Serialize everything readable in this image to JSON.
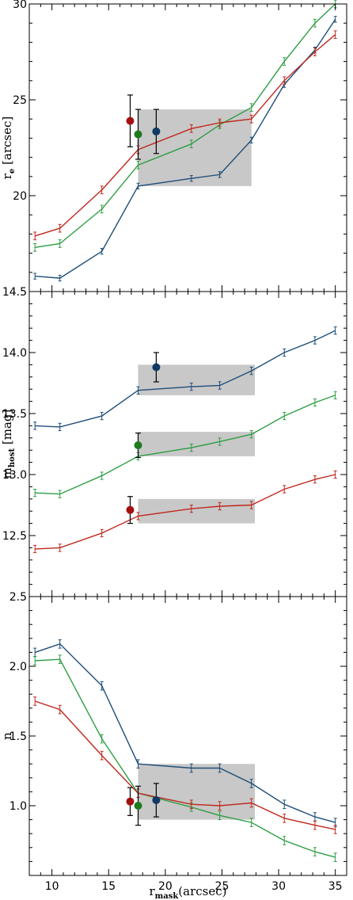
{
  "colors": {
    "blue": "#1f4e79",
    "green": "#2e9e44",
    "red": "#c0281e",
    "dot_red": "#a31010",
    "dot_green": "#1f7a1f",
    "dot_blue": "#0e3a63",
    "shade": "#c8c8c8"
  },
  "xlabel": {
    "main": "r",
    "sub": "mask",
    "rest": "(arcsec)"
  },
  "chart_data": [
    {
      "type": "line",
      "panel": "top",
      "ylabel": {
        "main": "r",
        "sub": "e",
        "rest": " [arcsec]"
      },
      "xlim": [
        8,
        36
      ],
      "ylim": [
        15,
        30
      ],
      "yticks": [
        20,
        25,
        30
      ],
      "x": [
        8.5,
        10.7,
        14.4,
        17.6,
        22.3,
        24.8,
        27.6,
        30.5,
        33.2,
        35
      ],
      "series": [
        {
          "color": "blue",
          "values": [
            15.8,
            15.7,
            17.1,
            20.5,
            20.9,
            21.1,
            22.9,
            25.8,
            27.6,
            29.2
          ],
          "err": 0.15
        },
        {
          "color": "green",
          "values": [
            17.3,
            17.5,
            19.3,
            21.6,
            22.7,
            23.7,
            24.6,
            27.0,
            29.0,
            30.0
          ],
          "err": 0.2
        },
        {
          "color": "red",
          "values": [
            17.9,
            18.3,
            20.3,
            22.4,
            23.5,
            23.8,
            24.0,
            26.0,
            27.5,
            28.4
          ],
          "err": 0.2
        }
      ],
      "points": [
        {
          "color": "dot_red",
          "x": 16.9,
          "y": 23.9,
          "err": 1.35
        },
        {
          "color": "dot_green",
          "x": 17.6,
          "y": 23.2,
          "err": 1.3
        },
        {
          "color": "dot_blue",
          "x": 19.2,
          "y": 23.35,
          "err": 1.15
        }
      ],
      "boxes": [
        {
          "x0": 17.6,
          "x1": 27.6,
          "y0": 20.5,
          "y1": 24.5
        }
      ]
    },
    {
      "type": "line",
      "panel": "middle",
      "ylabel": {
        "main": "m",
        "sub": "host",
        "rest": " [mag]"
      },
      "xlim": [
        8,
        36
      ],
      "ylim": [
        12.0,
        14.5
      ],
      "yticks": [
        12.5,
        13.0,
        13.5,
        14.0,
        14.5
      ],
      "x": [
        8.5,
        10.7,
        14.4,
        17.6,
        22.3,
        24.8,
        27.6,
        30.5,
        33.2,
        35
      ],
      "series": [
        {
          "color": "blue",
          "values": [
            13.4,
            13.39,
            13.48,
            13.69,
            13.72,
            13.73,
            13.85,
            14.0,
            14.1,
            14.18
          ],
          "err": 0.03
        },
        {
          "color": "green",
          "values": [
            12.85,
            12.84,
            12.99,
            13.15,
            13.22,
            13.27,
            13.33,
            13.48,
            13.59,
            13.65
          ],
          "err": 0.03
        },
        {
          "color": "red",
          "values": [
            12.39,
            12.4,
            12.52,
            12.66,
            12.72,
            12.74,
            12.75,
            12.88,
            12.96,
            13.0
          ],
          "err": 0.03
        }
      ],
      "points": [
        {
          "color": "dot_red",
          "x": 16.9,
          "y": 12.71,
          "err": 0.11
        },
        {
          "color": "dot_green",
          "x": 17.6,
          "y": 13.24,
          "err": 0.1
        },
        {
          "color": "dot_blue",
          "x": 19.2,
          "y": 13.88,
          "err": 0.12
        }
      ],
      "boxes": [
        {
          "x0": 17.6,
          "x1": 27.9,
          "y0": 13.65,
          "y1": 13.9
        },
        {
          "x0": 17.6,
          "x1": 27.9,
          "y0": 13.15,
          "y1": 13.35
        },
        {
          "x0": 17.6,
          "x1": 27.9,
          "y0": 12.6,
          "y1": 12.8
        }
      ]
    },
    {
      "type": "line",
      "panel": "bottom",
      "ylabel": {
        "main": "n",
        "sub": "",
        "rest": ""
      },
      "xlim": [
        8,
        36
      ],
      "ylim": [
        0.5,
        2.5
      ],
      "yticks": [
        1.0,
        1.5,
        2.0,
        2.5
      ],
      "xticks": [
        10,
        15,
        20,
        25,
        30,
        35
      ],
      "x": [
        8.5,
        10.7,
        14.4,
        17.6,
        22.3,
        24.8,
        27.6,
        30.5,
        33.2,
        35
      ],
      "series": [
        {
          "color": "blue",
          "values": [
            2.1,
            2.16,
            1.86,
            1.3,
            1.27,
            1.27,
            1.16,
            1.01,
            0.92,
            0.88
          ],
          "err": 0.03
        },
        {
          "color": "green",
          "values": [
            2.04,
            2.05,
            1.48,
            1.09,
            0.99,
            0.93,
            0.88,
            0.75,
            0.67,
            0.63
          ],
          "err": 0.03
        },
        {
          "color": "red",
          "values": [
            1.75,
            1.69,
            1.36,
            1.09,
            1.01,
            1.0,
            1.02,
            0.91,
            0.86,
            0.83
          ],
          "err": 0.03
        }
      ],
      "points": [
        {
          "color": "dot_red",
          "x": 16.9,
          "y": 1.03,
          "err": 0.1
        },
        {
          "color": "dot_green",
          "x": 17.6,
          "y": 1.0,
          "err": 0.14
        },
        {
          "color": "dot_blue",
          "x": 19.2,
          "y": 1.04,
          "err": 0.12
        }
      ],
      "boxes": [
        {
          "x0": 17.6,
          "x1": 27.9,
          "y0": 0.9,
          "y1": 1.3
        }
      ]
    }
  ]
}
